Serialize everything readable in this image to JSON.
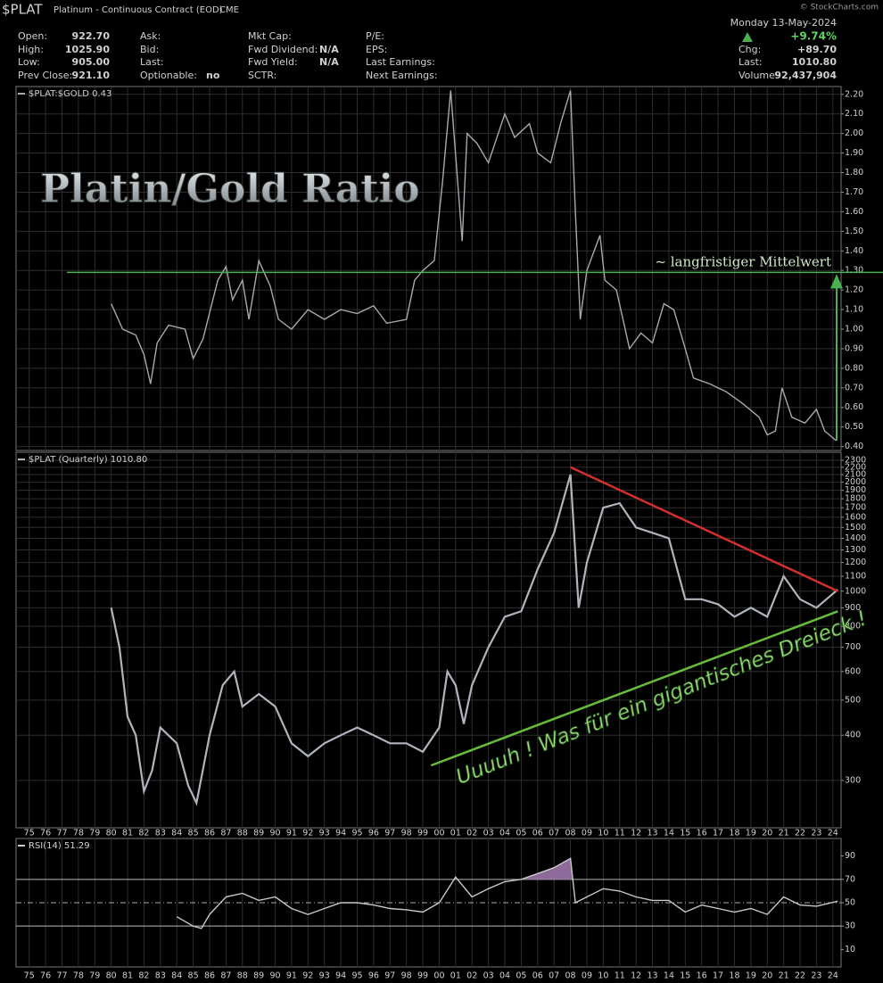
{
  "header": {
    "symbol": "$PLAT",
    "name": "Platinum - Continuous Contract (EOD)",
    "exchange": "CME",
    "copyright": "© StockCharts.com",
    "date": "Monday  13-May-2024",
    "change_pct": "+9.74%",
    "columns": [
      [
        {
          "label": "Open:",
          "value": "922.70"
        },
        {
          "label": "High:",
          "value": "1025.90"
        },
        {
          "label": "Low:",
          "value": "905.00"
        },
        {
          "label": "Prev Close:",
          "value": "921.10"
        }
      ],
      [
        {
          "label": "Ask:"
        },
        {
          "label": "Bid:"
        },
        {
          "label": "Last:"
        },
        {
          "label": "Optionable:",
          "value": "no"
        }
      ],
      [
        {
          "label": "Mkt Cap:"
        },
        {
          "label": "Fwd Dividend:",
          "value": "N/A"
        },
        {
          "label": "Fwd Yield:",
          "value": "N/A"
        },
        {
          "label": "SCTR:"
        }
      ],
      [
        {
          "label": "P/E:"
        },
        {
          "label": "EPS:"
        },
        {
          "label": "Last Earnings:"
        },
        {
          "label": "Next Earnings:"
        }
      ]
    ],
    "right": [
      {
        "label": "Chg:",
        "value": "+89.70"
      },
      {
        "label": "Last:",
        "value": "1010.80"
      },
      {
        "label": "Volume:",
        "value": "92,437,904"
      }
    ]
  },
  "chart_data": [
    {
      "type": "line",
      "title": "Platin/Gold Ratio",
      "x": [
        1980,
        1980.7,
        1981.5,
        1982,
        1982.4,
        1982.8,
        1983.5,
        1984.5,
        1985,
        1985.6,
        1986.5,
        1987,
        1987.4,
        1988,
        1988.4,
        1989,
        1989.7,
        1990.2,
        1991,
        1992,
        1993,
        1994,
        1995,
        1996,
        1996.8,
        1998,
        1998.5,
        1999,
        1999.7,
        2000.2,
        2000.7,
        2001.4,
        2001.7,
        2002.3,
        2003,
        2004,
        2004.6,
        2005.5,
        2006,
        2006.8,
        2007.4,
        2008,
        2008.3,
        2008.6,
        2009,
        2009.8,
        2010.1,
        2010.8,
        2011.6,
        2012.3,
        2013,
        2013.7,
        2014.3,
        2015,
        2015.5,
        2016.5,
        2017.5,
        2018.5,
        2019.5,
        2020,
        2020.5,
        2020.9,
        2021.5,
        2022.3,
        2023,
        2023.5,
        2024.2
      ],
      "series": [
        {
          "name": "$PLAT:$GOLD 0.43",
          "color": "#a8a8b0",
          "values": [
            1.13,
            1.0,
            0.97,
            0.87,
            0.72,
            0.93,
            1.02,
            1.0,
            0.85,
            0.95,
            1.25,
            1.32,
            1.15,
            1.25,
            1.05,
            1.35,
            1.22,
            1.05,
            1.0,
            1.1,
            1.05,
            1.1,
            1.08,
            1.12,
            1.03,
            1.05,
            1.25,
            1.3,
            1.35,
            1.75,
            2.22,
            1.45,
            2.0,
            1.95,
            1.85,
            2.1,
            1.98,
            2.05,
            1.9,
            1.85,
            2.05,
            2.22,
            1.6,
            1.05,
            1.3,
            1.48,
            1.25,
            1.2,
            0.9,
            0.98,
            0.93,
            1.13,
            1.1,
            0.9,
            0.75,
            0.72,
            0.68,
            0.62,
            0.55,
            0.46,
            0.48,
            0.7,
            0.55,
            0.52,
            0.59,
            0.48,
            0.43
          ]
        }
      ],
      "reference_line": {
        "value": 1.29,
        "label": "~ langfristiger Mittelwert",
        "color": "#4caf50"
      },
      "xlim": [
        1974.2,
        2024.5
      ],
      "ylim": [
        0.38,
        2.24
      ],
      "yticks": [
        {
          "value": 0.4,
          "label": "0.40"
        },
        {
          "value": 0.5,
          "label": "0.50"
        },
        {
          "value": 0.6,
          "label": "0.60"
        },
        {
          "value": 0.7,
          "label": "0.70"
        },
        {
          "value": 0.8,
          "label": "0.80"
        },
        {
          "value": 0.9,
          "label": "0.90"
        },
        {
          "value": 1.0,
          "label": "1.00"
        },
        {
          "value": 1.1,
          "label": "1.10"
        },
        {
          "value": 1.2,
          "label": "1.20"
        },
        {
          "value": 1.3,
          "label": "1.30"
        },
        {
          "value": 1.4,
          "label": "1.40"
        },
        {
          "value": 1.5,
          "label": "1.50"
        },
        {
          "value": 1.6,
          "label": "1.60"
        },
        {
          "value": 1.7,
          "label": "1.70"
        },
        {
          "value": 1.8,
          "label": "1.80"
        },
        {
          "value": 1.9,
          "label": "1.90"
        },
        {
          "value": 2.0,
          "label": "2.00"
        },
        {
          "value": 2.1,
          "label": "2.10"
        },
        {
          "value": 2.2,
          "label": "2.20"
        }
      ],
      "log": false,
      "grid": true
    },
    {
      "type": "line",
      "annotation": "Uuuuh ! Was für ein gigantisches Dreieck !",
      "x": [
        1980,
        1980.5,
        1981,
        1981.5,
        1982,
        1982.5,
        1983,
        1984,
        1984.7,
        1985.2,
        1986,
        1986.8,
        1987.5,
        1988,
        1989,
        1990,
        1991,
        1992,
        1993,
        1994,
        1995,
        1996,
        1997,
        1998,
        1999,
        2000,
        2000.5,
        2001,
        2001.5,
        2002,
        2003,
        2004,
        2005,
        2006,
        2007,
        2008,
        2008.5,
        2009,
        2010,
        2011,
        2012,
        2013,
        2014,
        2015,
        2016,
        2017,
        2018,
        2019,
        2020,
        2021,
        2022,
        2023,
        2024.3
      ],
      "series": [
        {
          "name": "$PLAT (Quarterly) 1010.80",
          "color": "#b0b4bc",
          "values": [
            900,
            700,
            450,
            400,
            280,
            320,
            420,
            380,
            290,
            260,
            400,
            550,
            600,
            480,
            520,
            480,
            380,
            350,
            380,
            400,
            420,
            400,
            380,
            380,
            360,
            420,
            600,
            550,
            430,
            550,
            700,
            850,
            880,
            1150,
            1450,
            2100,
            900,
            1200,
            1700,
            1750,
            1500,
            1450,
            1400,
            950,
            950,
            920,
            850,
            900,
            850,
            1100,
            950,
            900,
            1010.8
          ]
        }
      ],
      "trend_lines": [
        {
          "color": "#d32f2f",
          "x": [
            2008,
            2024.3
          ],
          "y": [
            2200,
            1000
          ]
        },
        {
          "color": "#66bb3a",
          "x": [
            1999.5,
            2024.3
          ],
          "y": [
            330,
            880
          ]
        }
      ],
      "xlim": [
        1974.2,
        2024.5
      ],
      "ylim": [
        222,
        2420
      ],
      "log": true,
      "grid": true,
      "yticks": [
        300,
        400,
        500,
        600,
        700,
        800,
        900,
        1000,
        1100,
        1200,
        1300,
        1400,
        1500,
        1600,
        1700,
        1800,
        1900,
        2000,
        2100,
        2200,
        2300
      ],
      "xticks": [
        {
          "value": 1975,
          "label": "75"
        },
        {
          "value": 1976,
          "label": "76"
        },
        {
          "value": 1977,
          "label": "77"
        },
        {
          "value": 1978,
          "label": "78"
        },
        {
          "value": 1979,
          "label": "79"
        },
        {
          "value": 1980,
          "label": "80"
        },
        {
          "value": 1981,
          "label": "81"
        },
        {
          "value": 1982,
          "label": "82"
        },
        {
          "value": 1983,
          "label": "83"
        },
        {
          "value": 1984,
          "label": "84"
        },
        {
          "value": 1985,
          "label": "85"
        },
        {
          "value": 1986,
          "label": "86"
        },
        {
          "value": 1987,
          "label": "87"
        },
        {
          "value": 1988,
          "label": "88"
        },
        {
          "value": 1989,
          "label": "89"
        },
        {
          "value": 1990,
          "label": "90"
        },
        {
          "value": 1991,
          "label": "91"
        },
        {
          "value": 1992,
          "label": "92"
        },
        {
          "value": 1993,
          "label": "93"
        },
        {
          "value": 1994,
          "label": "94"
        },
        {
          "value": 1995,
          "label": "95"
        },
        {
          "value": 1996,
          "label": "96"
        },
        {
          "value": 1997,
          "label": "97"
        },
        {
          "value": 1998,
          "label": "98"
        },
        {
          "value": 1999,
          "label": "99"
        },
        {
          "value": 2000,
          "label": "00"
        },
        {
          "value": 2001,
          "label": "01"
        },
        {
          "value": 2002,
          "label": "02"
        },
        {
          "value": 2003,
          "label": "03"
        },
        {
          "value": 2004,
          "label": "04"
        },
        {
          "value": 2005,
          "label": "05"
        },
        {
          "value": 2006,
          "label": "06"
        },
        {
          "value": 2007,
          "label": "07"
        },
        {
          "value": 2008,
          "label": "08"
        },
        {
          "value": 2009,
          "label": "09"
        },
        {
          "value": 2010,
          "label": "10"
        },
        {
          "value": 2011,
          "label": "11"
        },
        {
          "value": 2012,
          "label": "12"
        },
        {
          "value": 2013,
          "label": "13"
        },
        {
          "value": 2014,
          "label": "14"
        },
        {
          "value": 2015,
          "label": "15"
        },
        {
          "value": 2016,
          "label": "16"
        },
        {
          "value": 2017,
          "label": "17"
        },
        {
          "value": 2018,
          "label": "18"
        },
        {
          "value": 2019,
          "label": "19"
        },
        {
          "value": 2020,
          "label": "20"
        },
        {
          "value": 2021,
          "label": "21"
        },
        {
          "value": 2022,
          "label": "22"
        },
        {
          "value": 2023,
          "label": "23"
        },
        {
          "value": 2024,
          "label": "24"
        }
      ]
    },
    {
      "type": "line",
      "x": [
        1984,
        1985,
        1985.5,
        1986,
        1987,
        1988,
        1989,
        1990,
        1991,
        1992,
        1993,
        1994,
        1995,
        1996,
        1997,
        1998,
        1999,
        2000,
        2001,
        2002,
        2003,
        2004,
        2005,
        2006,
        2007,
        2008,
        2008.3,
        2009,
        2010,
        2011,
        2012,
        2013,
        2014,
        2015,
        2016,
        2017,
        2018,
        2019,
        2020,
        2021,
        2022,
        2023,
        2024.3
      ],
      "series": [
        {
          "name": "RSI(14) 51.29",
          "color": "#c8c8c8",
          "values": [
            38,
            30,
            28,
            40,
            55,
            58,
            52,
            55,
            45,
            40,
            45,
            50,
            50,
            48,
            45,
            44,
            42,
            50,
            72,
            55,
            62,
            68,
            70,
            75,
            80,
            88,
            50,
            55,
            62,
            60,
            55,
            52,
            52,
            42,
            48,
            45,
            42,
            45,
            40,
            55,
            48,
            47,
            51.29
          ]
        }
      ],
      "bands": [
        70,
        30
      ],
      "midline": 50,
      "overbought_color": "#8e6a9a",
      "xlim": [
        1974.2,
        2024.5
      ],
      "ylim": [
        -5,
        105
      ],
      "yticks": [
        10,
        30,
        50,
        70,
        90
      ],
      "grid": true,
      "xticks": [
        {
          "value": 1975,
          "label": "75"
        },
        {
          "value": 1976,
          "label": "76"
        },
        {
          "value": 1977,
          "label": "77"
        },
        {
          "value": 1978,
          "label": "78"
        },
        {
          "value": 1979,
          "label": "79"
        },
        {
          "value": 1980,
          "label": "80"
        },
        {
          "value": 1981,
          "label": "81"
        },
        {
          "value": 1982,
          "label": "82"
        },
        {
          "value": 1983,
          "label": "83"
        },
        {
          "value": 1984,
          "label": "84"
        },
        {
          "value": 1985,
          "label": "85"
        },
        {
          "value": 1986,
          "label": "86"
        },
        {
          "value": 1987,
          "label": "87"
        },
        {
          "value": 1988,
          "label": "88"
        },
        {
          "value": 1989,
          "label": "89"
        },
        {
          "value": 1990,
          "label": "90"
        },
        {
          "value": 1991,
          "label": "91"
        },
        {
          "value": 1992,
          "label": "92"
        },
        {
          "value": 1993,
          "label": "93"
        },
        {
          "value": 1994,
          "label": "94"
        },
        {
          "value": 1995,
          "label": "95"
        },
        {
          "value": 1996,
          "label": "96"
        },
        {
          "value": 1997,
          "label": "97"
        },
        {
          "value": 1998,
          "label": "98"
        },
        {
          "value": 1999,
          "label": "99"
        },
        {
          "value": 2000,
          "label": "00"
        },
        {
          "value": 2001,
          "label": "01"
        },
        {
          "value": 2002,
          "label": "02"
        },
        {
          "value": 2003,
          "label": "03"
        },
        {
          "value": 2004,
          "label": "04"
        },
        {
          "value": 2005,
          "label": "05"
        },
        {
          "value": 2006,
          "label": "06"
        },
        {
          "value": 2007,
          "label": "07"
        },
        {
          "value": 2008,
          "label": "08"
        },
        {
          "value": 2009,
          "label": "09"
        },
        {
          "value": 2010,
          "label": "10"
        },
        {
          "value": 2011,
          "label": "11"
        },
        {
          "value": 2012,
          "label": "12"
        },
        {
          "value": 2013,
          "label": "13"
        },
        {
          "value": 2014,
          "label": "14"
        },
        {
          "value": 2015,
          "label": "15"
        },
        {
          "value": 2016,
          "label": "16"
        },
        {
          "value": 2017,
          "label": "17"
        },
        {
          "value": 2018,
          "label": "18"
        },
        {
          "value": 2019,
          "label": "19"
        },
        {
          "value": 2020,
          "label": "20"
        },
        {
          "value": 2021,
          "label": "21"
        },
        {
          "value": 2022,
          "label": "22"
        },
        {
          "value": 2023,
          "label": "23"
        },
        {
          "value": 2024,
          "label": "24"
        }
      ]
    }
  ]
}
